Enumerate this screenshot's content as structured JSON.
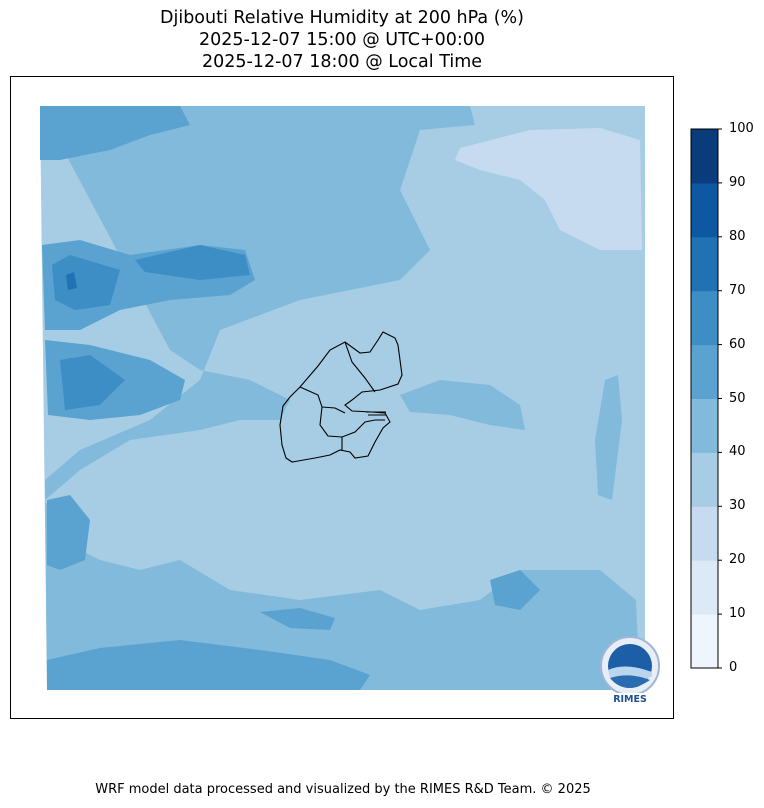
{
  "title": {
    "line1": "Djibouti Relative Humidity at 200 hPa (%)",
    "line2": "2025-12-07 15:00 @ UTC+00:00",
    "line3": "2025-12-07 18:00 @ Local Time"
  },
  "footer": "WRF model data processed and visualized by the RIMES R&D Team. © 2025",
  "logo": {
    "text": "RIMES"
  },
  "chart_data": {
    "type": "heatmap",
    "subtype": "filled-contour map",
    "title": "Djibouti Relative Humidity at 200 hPa (%)",
    "variable": "Relative Humidity",
    "units": "%",
    "colorbar": {
      "levels": [
        0,
        10,
        20,
        30,
        40,
        50,
        60,
        70,
        80,
        90,
        100
      ],
      "tick_labels": [
        "0",
        "10",
        "20",
        "30",
        "40",
        "50",
        "60",
        "70",
        "80",
        "90",
        "100"
      ],
      "colors": [
        "#eff5fc",
        "#dce9f6",
        "#c6dbef",
        "#a6cde3",
        "#81badb",
        "#5aa2d0",
        "#3d8ec4",
        "#2171b5",
        "#0d58a1",
        "#0a3b7a"
      ],
      "orientation": "vertical",
      "placement": "right"
    },
    "field_summary": {
      "dominant_range": "30-40",
      "west_and_south_range": "40-50",
      "west_maxima_range": "50-60",
      "northwest_peak_range": "60-70",
      "northeast_minimum_range": "20-30"
    },
    "overlay": "Djibouti administrative region boundaries",
    "grid": false,
    "legend": "colorbar-right"
  }
}
